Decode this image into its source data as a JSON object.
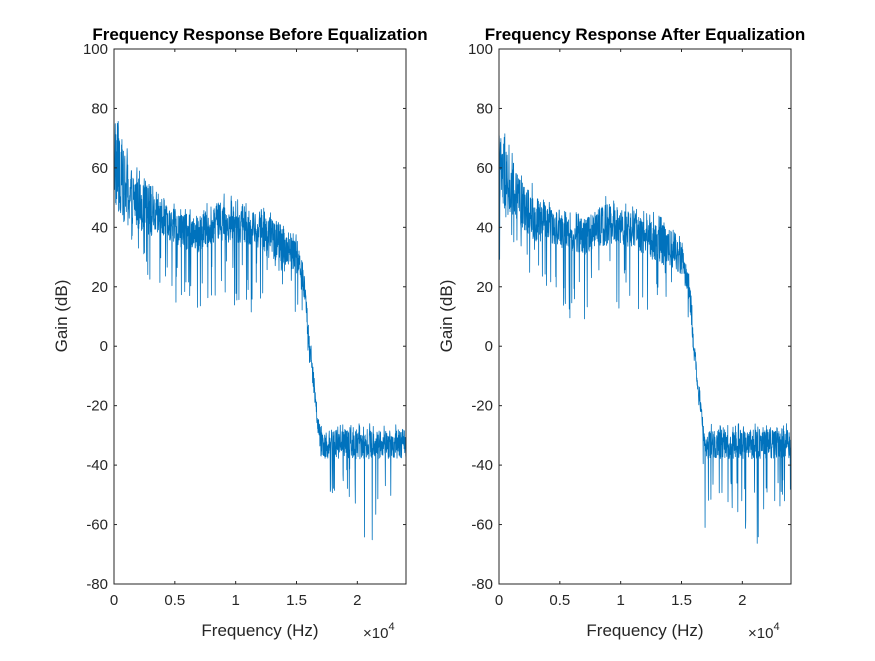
{
  "figure": {
    "background": "#ffffff",
    "axis_color": "#262626",
    "line_color": "#0072bd"
  },
  "chart_data": [
    {
      "type": "line",
      "title": "Frequency Response Before Equalization",
      "xlabel": "Frequency (Hz)",
      "ylabel": "Gain (dB)",
      "x_exponent_label": "×10",
      "x_exponent_power": "4",
      "xlim": [
        0,
        24000
      ],
      "ylim": [
        -80,
        100
      ],
      "xticks": [
        0,
        5000,
        10000,
        15000,
        20000
      ],
      "xtick_labels": [
        "0",
        "0.5",
        "1",
        "1.5",
        "2"
      ],
      "yticks": [
        -80,
        -60,
        -40,
        -20,
        0,
        20,
        40,
        60,
        80,
        100
      ],
      "ytick_labels": [
        "-80",
        "-60",
        "-40",
        "-20",
        "0",
        "20",
        "40",
        "60",
        "80",
        "100"
      ],
      "series": [
        {
          "color": "#0072bd",
          "x": [
            0,
            250,
            500,
            1000,
            1500,
            2000,
            2500,
            3000,
            4000,
            5000,
            6000,
            7000,
            8000,
            9000,
            10000,
            11000,
            12000,
            13000,
            14000,
            15000,
            15500,
            15800,
            16000,
            16300,
            16600,
            16800,
            17000,
            18000,
            19000,
            20000,
            21000,
            22000,
            23000,
            24000
          ],
          "y": [
            62,
            58,
            56,
            52,
            50,
            48,
            46,
            44,
            42,
            40,
            38,
            37,
            41,
            42,
            41,
            40,
            38,
            36,
            34,
            30,
            24,
            14,
            2,
            -8,
            -20,
            -28,
            -33,
            -33,
            -33,
            -33,
            -33,
            -33,
            -33,
            -33
          ],
          "peak_upper": [
            80,
            78,
            74,
            68,
            64,
            60,
            57,
            55,
            50,
            48,
            46,
            46,
            50,
            52,
            50,
            48,
            47,
            46,
            43,
            38,
            30,
            20,
            6,
            -2,
            -16,
            -24,
            -26,
            -26,
            -26,
            -26,
            -26,
            -26,
            -26,
            -26
          ],
          "peak_lower": [
            30,
            40,
            40,
            36,
            30,
            28,
            26,
            22,
            18,
            14,
            10,
            8,
            16,
            18,
            12,
            10,
            14,
            14,
            20,
            10,
            12,
            4,
            -4,
            -14,
            -28,
            -40,
            -70,
            -50,
            -52,
            -56,
            -70,
            -50,
            -54,
            -48
          ]
        }
      ]
    },
    {
      "type": "line",
      "title": "Frequency Response After Equalization",
      "xlabel": "Frequency (Hz)",
      "ylabel": "Gain (dB)",
      "x_exponent_label": "×10",
      "x_exponent_power": "4",
      "xlim": [
        0,
        24000
      ],
      "ylim": [
        -80,
        100
      ],
      "xticks": [
        0,
        5000,
        10000,
        15000,
        20000
      ],
      "xtick_labels": [
        "0",
        "0.5",
        "1",
        "1.5",
        "2"
      ],
      "yticks": [
        -80,
        -60,
        -40,
        -20,
        0,
        20,
        40,
        60,
        80,
        100
      ],
      "ytick_labels": [
        "-80",
        "-60",
        "-40",
        "-20",
        "0",
        "20",
        "40",
        "60",
        "80",
        "100"
      ],
      "series": [
        {
          "color": "#0072bd",
          "x": [
            0,
            250,
            500,
            1000,
            1500,
            2000,
            2500,
            3000,
            4000,
            5000,
            6000,
            7000,
            8000,
            9000,
            10000,
            11000,
            12000,
            13000,
            14000,
            15000,
            15500,
            15800,
            16000,
            16300,
            16600,
            16800,
            17000,
            18000,
            19000,
            20000,
            21000,
            22000,
            23000,
            24000
          ],
          "y": [
            60,
            57,
            55,
            51,
            49,
            47,
            45,
            43,
            41,
            39,
            37,
            36,
            40,
            41,
            40,
            39,
            37,
            35,
            33,
            29,
            22,
            12,
            0,
            -10,
            -22,
            -29,
            -33,
            -33,
            -33,
            -33,
            -33,
            -33,
            -33,
            -33
          ],
          "peak_upper": [
            78,
            76,
            72,
            66,
            62,
            58,
            56,
            54,
            49,
            47,
            45,
            45,
            49,
            51,
            49,
            47,
            46,
            45,
            42,
            36,
            28,
            18,
            4,
            -4,
            -18,
            -25,
            -26,
            -26,
            -26,
            -26,
            -26,
            -26,
            -26,
            -26
          ],
          "peak_lower": [
            26,
            38,
            38,
            34,
            28,
            26,
            24,
            20,
            16,
            6,
            10,
            8,
            14,
            16,
            10,
            12,
            12,
            12,
            18,
            8,
            10,
            2,
            -6,
            -16,
            -30,
            -42,
            -72,
            -52,
            -54,
            -58,
            -72,
            -52,
            -56,
            -50
          ]
        }
      ]
    }
  ]
}
